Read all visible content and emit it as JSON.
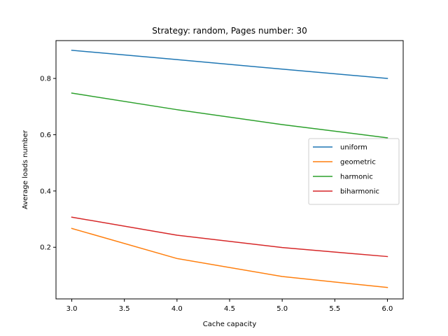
{
  "chart_data": {
    "type": "line",
    "title": "Strategy: random, Pages number: 30",
    "xlabel": "Cache capacity",
    "ylabel": "Average loads number",
    "x": [
      3,
      4,
      5,
      6
    ],
    "xlim": [
      2.85,
      6.15
    ],
    "ylim": [
      0.0165,
      0.9345
    ],
    "xticks": [
      3.0,
      3.5,
      4.0,
      4.5,
      5.0,
      5.5,
      6.0
    ],
    "xtick_labels": [
      "3.0",
      "3.5",
      "4.0",
      "4.5",
      "5.0",
      "5.5",
      "6.0"
    ],
    "yticks": [
      0.2,
      0.4,
      0.6,
      0.8
    ],
    "ytick_labels": [
      "0.2",
      "0.4",
      "0.6",
      "0.8"
    ],
    "grid": false,
    "legend_position": "center-right",
    "series": [
      {
        "name": "uniform",
        "color": "#1f77b4",
        "values": [
          0.9,
          0.867,
          0.833,
          0.8
        ]
      },
      {
        "name": "geometric",
        "color": "#ff7f0e",
        "values": [
          0.267,
          0.16,
          0.096,
          0.057
        ]
      },
      {
        "name": "harmonic",
        "color": "#2ca02c",
        "values": [
          0.748,
          0.689,
          0.636,
          0.589
        ]
      },
      {
        "name": "biharmonic",
        "color": "#d62728",
        "values": [
          0.307,
          0.243,
          0.199,
          0.167
        ]
      }
    ]
  }
}
